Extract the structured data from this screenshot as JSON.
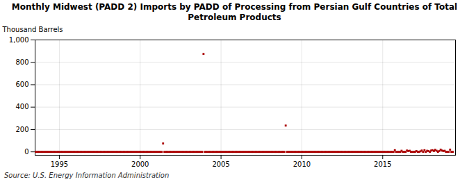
{
  "chart_data": {
    "type": "scatter",
    "title": "Monthly Midwest (PADD 2) Imports by PADD of Processing from Persian Gulf Countries of Total\nPetroleum Products",
    "ylabel": "Thousand Barrels",
    "caption": "Source: U.S. Energy Information Administration",
    "color": "#aa0000",
    "marker": "square",
    "grid": true,
    "xlim": [
      1993.5,
      2019.5
    ],
    "ylim": [
      -30,
      1000
    ],
    "xticks": [
      1995,
      2000,
      2005,
      2010,
      2015
    ],
    "yticks": [
      0,
      200,
      400,
      600,
      800,
      {
        "value": 1000,
        "label": "1,000"
      }
    ],
    "x": [
      1993.5,
      1993.583,
      1993.667,
      1993.75,
      1993.833,
      1993.917,
      1994.0,
      1994.083,
      1994.167,
      1994.25,
      1994.333,
      1994.417,
      1994.5,
      1994.583,
      1994.667,
      1994.75,
      1994.833,
      1994.917,
      1995.0,
      1995.083,
      1995.167,
      1995.25,
      1995.333,
      1995.417,
      1995.5,
      1995.583,
      1995.667,
      1995.75,
      1995.833,
      1995.917,
      1996.0,
      1996.083,
      1996.167,
      1996.25,
      1996.333,
      1996.417,
      1996.5,
      1996.583,
      1996.667,
      1996.75,
      1996.833,
      1996.917,
      1997.0,
      1997.083,
      1997.167,
      1997.25,
      1997.333,
      1997.417,
      1997.5,
      1997.583,
      1997.667,
      1997.75,
      1997.833,
      1997.917,
      1998.0,
      1998.083,
      1998.167,
      1998.25,
      1998.333,
      1998.417,
      1998.5,
      1998.583,
      1998.667,
      1998.75,
      1998.833,
      1998.917,
      1999.0,
      1999.083,
      1999.167,
      1999.25,
      1999.333,
      1999.417,
      1999.5,
      1999.583,
      1999.667,
      1999.75,
      1999.833,
      1999.917,
      2000.0,
      2000.083,
      2000.167,
      2000.25,
      2000.333,
      2000.417,
      2000.5,
      2000.583,
      2000.667,
      2000.75,
      2000.833,
      2000.917,
      2001.0,
      2001.083,
      2001.167,
      2001.25,
      2001.333,
      2001.417,
      2001.5,
      2001.583,
      2001.667,
      2001.75,
      2001.833,
      2001.917,
      2002.0,
      2002.083,
      2002.167,
      2002.25,
      2002.333,
      2002.417,
      2002.5,
      2002.583,
      2002.667,
      2002.75,
      2002.833,
      2002.917,
      2003.0,
      2003.083,
      2003.167,
      2003.25,
      2003.333,
      2003.417,
      2003.5,
      2003.583,
      2003.667,
      2003.75,
      2003.833,
      2003.917,
      2004.0,
      2004.083,
      2004.167,
      2004.25,
      2004.333,
      2004.417,
      2004.5,
      2004.583,
      2004.667,
      2004.75,
      2004.833,
      2004.917,
      2005.0,
      2005.083,
      2005.167,
      2005.25,
      2005.333,
      2005.417,
      2005.5,
      2005.583,
      2005.667,
      2005.75,
      2005.833,
      2005.917,
      2006.0,
      2006.083,
      2006.167,
      2006.25,
      2006.333,
      2006.417,
      2006.5,
      2006.583,
      2006.667,
      2006.75,
      2006.833,
      2006.917,
      2007.0,
      2007.083,
      2007.167,
      2007.25,
      2007.333,
      2007.417,
      2007.5,
      2007.583,
      2007.667,
      2007.75,
      2007.833,
      2007.917,
      2008.0,
      2008.083,
      2008.167,
      2008.25,
      2008.333,
      2008.417,
      2008.5,
      2008.583,
      2008.667,
      2008.75,
      2008.833,
      2008.917,
      2009.0,
      2009.083,
      2009.167,
      2009.25,
      2009.333,
      2009.417,
      2009.5,
      2009.583,
      2009.667,
      2009.75,
      2009.833,
      2009.917,
      2010.0,
      2010.083,
      2010.167,
      2010.25,
      2010.333,
      2010.417,
      2010.5,
      2010.583,
      2010.667,
      2010.75,
      2010.833,
      2010.917,
      2011.0,
      2011.083,
      2011.167,
      2011.25,
      2011.333,
      2011.417,
      2011.5,
      2011.583,
      2011.667,
      2011.75,
      2011.833,
      2011.917,
      2012.0,
      2012.083,
      2012.167,
      2012.25,
      2012.333,
      2012.417,
      2012.5,
      2012.583,
      2012.667,
      2012.75,
      2012.833,
      2012.917,
      2013.0,
      2013.083,
      2013.167,
      2013.25,
      2013.333,
      2013.417,
      2013.5,
      2013.583,
      2013.667,
      2013.75,
      2013.833,
      2013.917,
      2014.0,
      2014.083,
      2014.167,
      2014.25,
      2014.333,
      2014.417,
      2014.5,
      2014.583,
      2014.667,
      2014.75,
      2014.833,
      2014.917,
      2015.0,
      2015.083,
      2015.167,
      2015.25,
      2015.333,
      2015.417,
      2015.5,
      2015.583,
      2015.667,
      2015.75,
      2015.833,
      2015.917,
      2016.0,
      2016.083,
      2016.167,
      2016.25,
      2016.333,
      2016.417,
      2016.5,
      2016.583,
      2016.667,
      2016.75,
      2016.833,
      2016.917,
      2017.0,
      2017.083,
      2017.167,
      2017.25,
      2017.333,
      2017.417,
      2017.5,
      2017.583,
      2017.667,
      2017.75,
      2017.833,
      2017.917,
      2018.0,
      2018.083,
      2018.167,
      2018.25,
      2018.333,
      2018.417,
      2018.5,
      2018.583,
      2018.667,
      2018.75,
      2018.833,
      2018.917,
      2019.0,
      2019.083,
      2019.167,
      2019.25,
      2019.333
    ],
    "values": [
      0,
      0,
      0,
      0,
      0,
      0,
      0,
      0,
      0,
      0,
      0,
      0,
      0,
      0,
      0,
      0,
      0,
      0,
      0,
      0,
      0,
      0,
      0,
      0,
      0,
      0,
      0,
      0,
      0,
      0,
      0,
      0,
      0,
      0,
      0,
      0,
      0,
      0,
      0,
      0,
      0,
      0,
      0,
      0,
      0,
      0,
      0,
      0,
      0,
      0,
      0,
      0,
      0,
      0,
      0,
      0,
      0,
      0,
      0,
      0,
      0,
      0,
      0,
      0,
      0,
      0,
      0,
      0,
      0,
      0,
      0,
      0,
      0,
      0,
      0,
      0,
      0,
      0,
      0,
      0,
      0,
      0,
      0,
      0,
      0,
      0,
      0,
      0,
      0,
      0,
      0,
      0,
      0,
      0,
      0,
      75,
      0,
      0,
      0,
      0,
      0,
      0,
      0,
      0,
      0,
      0,
      0,
      0,
      0,
      0,
      0,
      0,
      0,
      0,
      0,
      0,
      0,
      0,
      0,
      0,
      0,
      0,
      0,
      0,
      0,
      875,
      0,
      0,
      0,
      0,
      0,
      0,
      0,
      0,
      0,
      0,
      0,
      0,
      0,
      0,
      0,
      0,
      0,
      0,
      0,
      0,
      0,
      0,
      0,
      0,
      0,
      0,
      0,
      0,
      0,
      0,
      0,
      0,
      0,
      0,
      0,
      0,
      0,
      0,
      0,
      0,
      0,
      0,
      0,
      0,
      0,
      0,
      0,
      0,
      0,
      0,
      0,
      0,
      0,
      0,
      0,
      0,
      0,
      0,
      0,
      0,
      235,
      0,
      0,
      0,
      0,
      0,
      0,
      0,
      0,
      0,
      0,
      0,
      0,
      0,
      0,
      0,
      0,
      0,
      0,
      0,
      0,
      0,
      0,
      0,
      0,
      0,
      0,
      0,
      0,
      0,
      0,
      0,
      0,
      0,
      0,
      0,
      0,
      0,
      0,
      0,
      0,
      0,
      0,
      0,
      0,
      0,
      0,
      0,
      0,
      0,
      0,
      0,
      0,
      0,
      0,
      0,
      0,
      0,
      0,
      0,
      0,
      0,
      0,
      0,
      0,
      0,
      0,
      0,
      0,
      0,
      0,
      0,
      0,
      0,
      0,
      0,
      0,
      0,
      0,
      0,
      0,
      15,
      0,
      0,
      0,
      0,
      10,
      0,
      0,
      0,
      12,
      8,
      10,
      0,
      0,
      0,
      0,
      8,
      0,
      0,
      5,
      12,
      0,
      15,
      0,
      10,
      8,
      0,
      12,
      15,
      8,
      18,
      10,
      0,
      8,
      20,
      12,
      8,
      10,
      0,
      0,
      0,
      20,
      0,
      0
    ]
  }
}
